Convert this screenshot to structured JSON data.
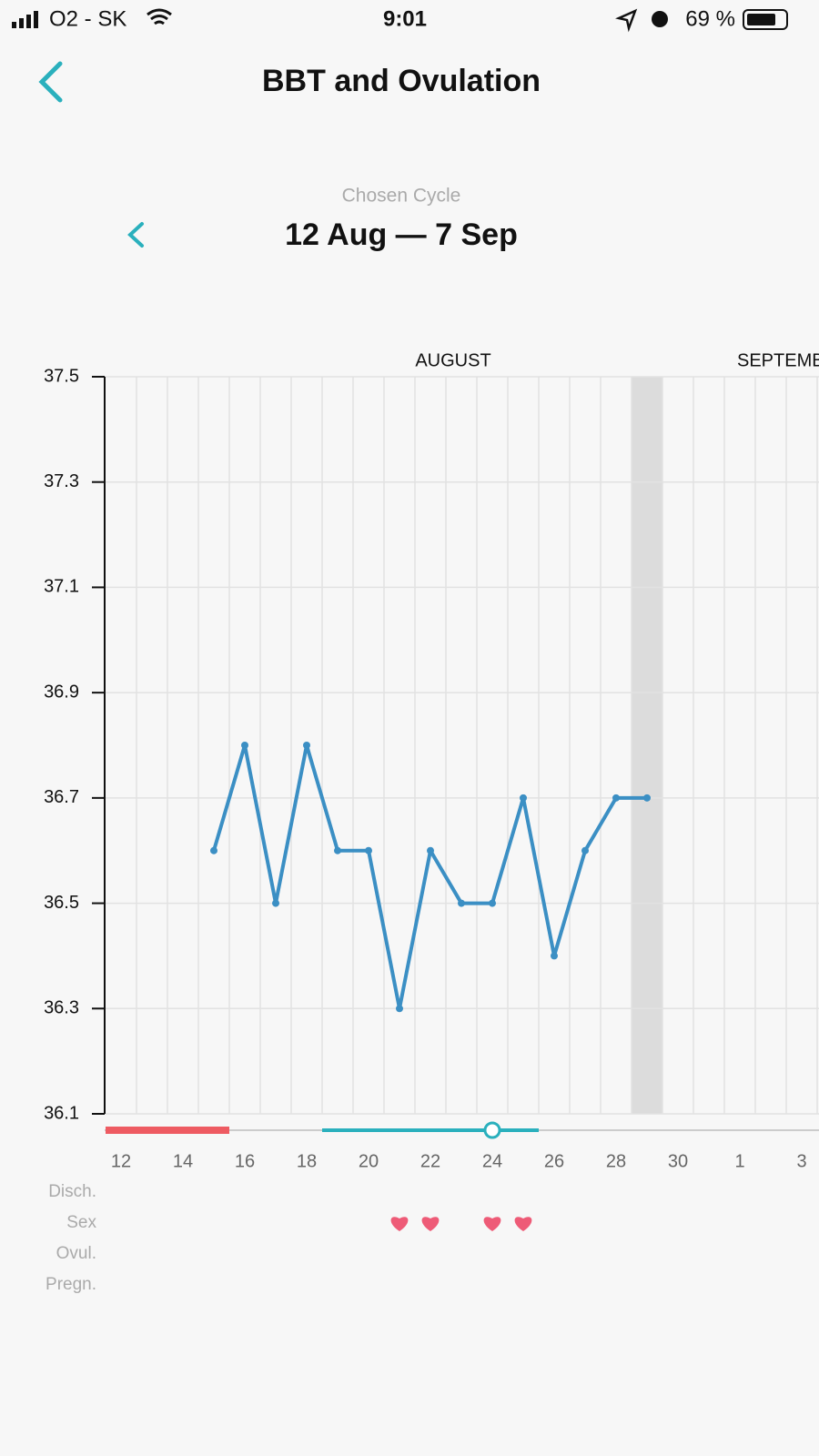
{
  "status_bar": {
    "carrier": "O2 - SK",
    "time": "9:01",
    "battery": "69 %"
  },
  "header": {
    "title": "BBT and Ovulation"
  },
  "cycle": {
    "caption": "Chosen Cycle",
    "range": "12 Aug — 7 Sep"
  },
  "chart_data": {
    "type": "line",
    "months": [
      "AUGUST",
      "SEPTEMBER"
    ],
    "categories": [
      "12",
      null,
      "14",
      null,
      "16",
      null,
      "18",
      null,
      "20",
      null,
      "22",
      null,
      "24",
      null,
      "26",
      null,
      "28",
      null,
      "30",
      null,
      "1",
      null,
      "3"
    ],
    "series": [
      {
        "color": "#3b8fc4",
        "values": [
          null,
          null,
          null,
          36.6,
          36.8,
          36.5,
          36.8,
          36.6,
          36.6,
          36.3,
          36.6,
          36.5,
          36.5,
          36.7,
          36.4,
          36.6,
          36.7,
          36.7,
          null,
          null,
          null,
          null,
          null
        ]
      }
    ],
    "ylim": [
      36.1,
      37.5
    ],
    "yticks": [
      36.1,
      36.3,
      36.5,
      36.7,
      36.9,
      37.1,
      37.3,
      37.5
    ],
    "grid": true,
    "highlight_index": 17,
    "period": {
      "start_index": 0,
      "end_index": 3,
      "color": "#ee5b62"
    },
    "fertile": {
      "start_index": 7,
      "end_index": 13,
      "color": "#2ab0bd"
    },
    "ovulation_index": 12,
    "row_labels": [
      "Disch.",
      "Sex",
      "Ovul.",
      "Pregn."
    ],
    "sex_days": [
      9,
      10,
      12,
      13
    ],
    "heart_color": "#ee5b77"
  }
}
